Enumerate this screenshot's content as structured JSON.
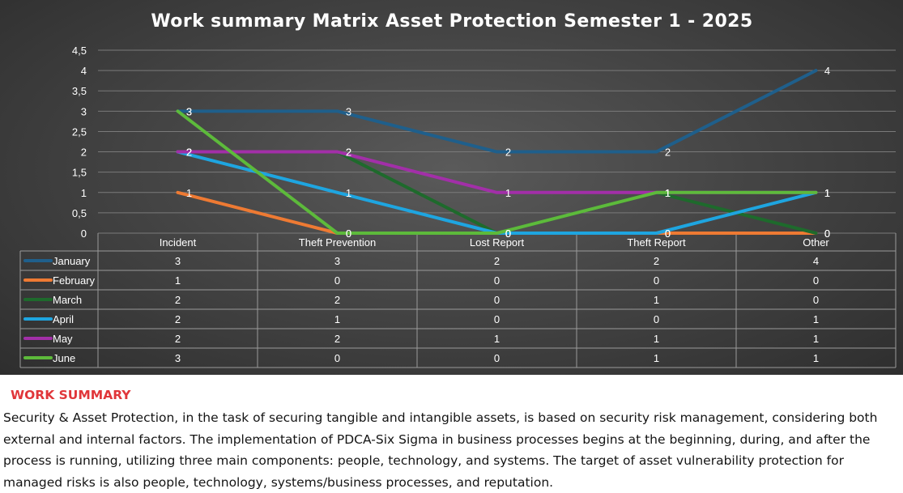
{
  "chart_data": {
    "type": "line",
    "title": "Work summary Matrix Asset Protection Semester 1 - 2025",
    "categories": [
      "Incident",
      "Theft Prevention",
      "Lost Report",
      "Theft Report",
      "Other"
    ],
    "y_ticks": [
      "0",
      "0,5",
      "1",
      "1,5",
      "2",
      "2,5",
      "3",
      "3,5",
      "4",
      "4,5"
    ],
    "ylim": [
      0,
      4.5
    ],
    "grid": true,
    "legend": "data-table",
    "series": [
      {
        "name": "January",
        "color": "#1f5f8b",
        "values": [
          3,
          3,
          2,
          2,
          4
        ]
      },
      {
        "name": "February",
        "color": "#ee7a33",
        "values": [
          1,
          0,
          0,
          0,
          0
        ]
      },
      {
        "name": "March",
        "color": "#1e6a2c",
        "values": [
          2,
          2,
          0,
          1,
          0
        ]
      },
      {
        "name": "April",
        "color": "#1ea5e0",
        "values": [
          2,
          1,
          0,
          0,
          1
        ]
      },
      {
        "name": "May",
        "color": "#a22fa8",
        "values": [
          2,
          2,
          1,
          1,
          1
        ]
      },
      {
        "name": "June",
        "color": "#5dba3b",
        "values": [
          3,
          0,
          0,
          1,
          1
        ]
      }
    ]
  },
  "summary": {
    "heading": "WORK SUMMARY",
    "body": "Security & Asset Protection, in the task of securing tangible and intangible assets, is based on security risk management, considering both external and internal factors. The implementation of PDCA-Six Sigma in business processes begins at the beginning, during, and after the process is running, utilizing three main components: people, technology, and systems. The target of asset vulnerability protection for managed risks is also people, technology, systems/business processes, and reputation."
  }
}
